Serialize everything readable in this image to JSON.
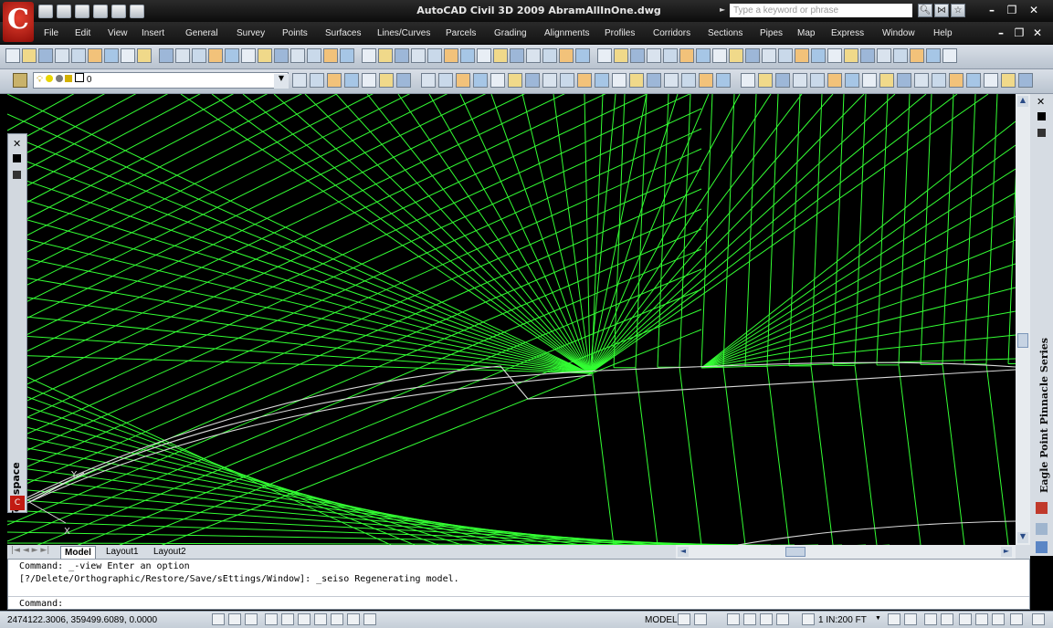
{
  "title": "AutoCAD Civil 3D 2009 AbramAllInOne.dwg",
  "search": {
    "placeholder": "Type a keyword or phrase"
  },
  "menu": [
    "File",
    "Edit",
    "View",
    "Insert",
    "General",
    "Survey",
    "Points",
    "Surfaces",
    "Lines/Curves",
    "Parcels",
    "Grading",
    "Alignments",
    "Profiles",
    "Corridors",
    "Sections",
    "Pipes",
    "Map",
    "Express",
    "Window",
    "Help"
  ],
  "layer": {
    "current": "0"
  },
  "palette": {
    "label": "Toolspace"
  },
  "right_panel": {
    "label": "Eagle Point Pinnacle Series"
  },
  "tabs": [
    "Model",
    "Layout1",
    "Layout2"
  ],
  "command": {
    "history": [
      "Command: _-view Enter an option",
      "[?/Delete/Orthographic/Restore/Save/sEttings/Window]: _seiso Regenerating model."
    ],
    "prompt": "Command:"
  },
  "status": {
    "coordinates": "2474122.3006, 359499.6089, 0.0000",
    "space": "MODEL",
    "scale": "1 IN:200 FT"
  },
  "colors": {
    "tin": "#33ff33",
    "linework": "#d8d8d8",
    "canvas": "#000000"
  }
}
